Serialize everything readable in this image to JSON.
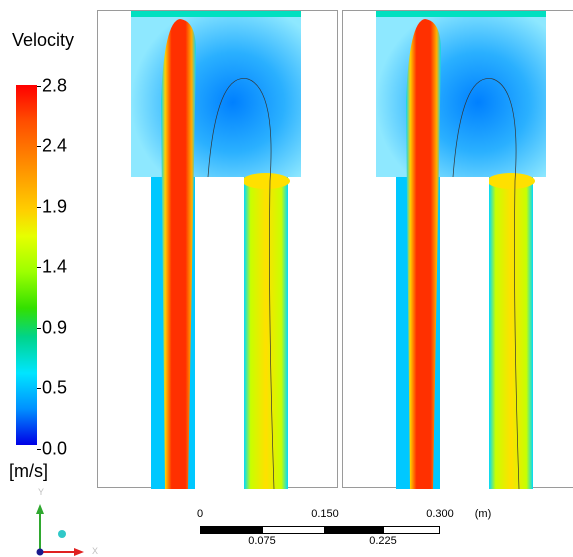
{
  "legend": {
    "title": "Velocity",
    "unit": "[m/s]",
    "ticks": [
      "2.8",
      "2.4",
      "1.9",
      "1.4",
      "0.9",
      "0.5",
      "0.0"
    ]
  },
  "scale_bar": {
    "top_labels": [
      "0",
      "0.150",
      "0.300"
    ],
    "unit": "(m)",
    "bottom_labels": [
      "0.075",
      "0.225"
    ]
  },
  "axes": {
    "y_label": "Y",
    "x_label": "X"
  },
  "colors": {
    "max": "#ff0000",
    "high": "#ff8c00",
    "mid": "#e6ff00",
    "low_mid": "#00d48a",
    "low": "#00e5ff",
    "min": "#0000e6"
  }
}
